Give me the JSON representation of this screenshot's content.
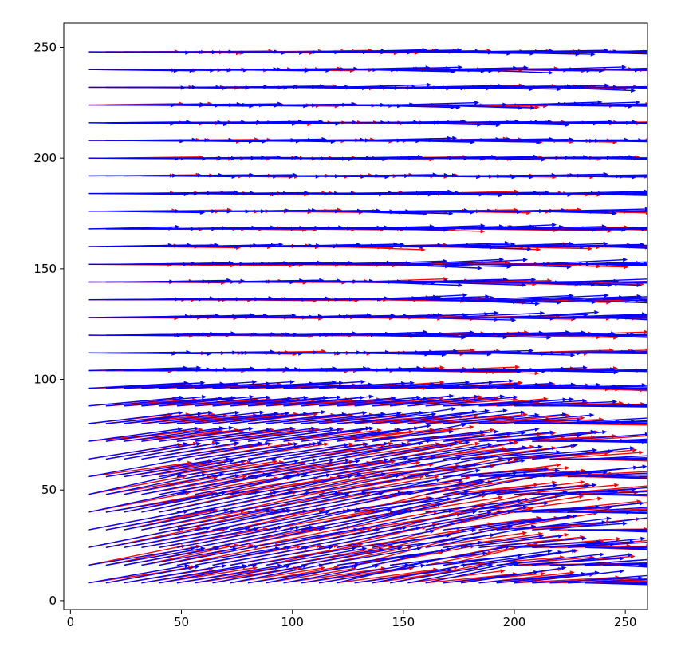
{
  "chart_data": {
    "type": "quiver",
    "title": "",
    "xlabel": "",
    "ylabel": "",
    "xlim": [
      -3,
      260
    ],
    "ylim": [
      -4,
      261
    ],
    "xticks": [
      0,
      50,
      100,
      150,
      200,
      250
    ],
    "yticks": [
      0,
      50,
      100,
      150,
      200,
      250
    ],
    "x_tick_labels": [
      "0",
      "50",
      "100",
      "150",
      "200",
      "250"
    ],
    "y_tick_labels": [
      "0",
      "50",
      "100",
      "150",
      "200",
      "250"
    ],
    "grid": false,
    "legend": "none",
    "arrow_spacing": 8,
    "series": [
      {
        "color": "#ff0000",
        "draw_order": 0,
        "seed": 7,
        "base": {
          "dx": 40,
          "dy": 0
        },
        "shear_start_x": 115,
        "rows": [
          {
            "y": 8,
            "mag": 44,
            "dy": 7,
            "shear": 4
          },
          {
            "y": 16,
            "mag": 46,
            "dy": 9,
            "shear": 7
          },
          {
            "y": 24,
            "mag": 46,
            "dy": 9,
            "shear": 6
          },
          {
            "y": 32,
            "mag": 46,
            "dy": 9,
            "shear": 6
          },
          {
            "y": 40,
            "mag": 46,
            "dy": 9,
            "shear": 5
          },
          {
            "y": 48,
            "mag": 46,
            "dy": 8,
            "shear": 5
          },
          {
            "y": 56,
            "mag": 44,
            "dy": 7,
            "shear": 5
          },
          {
            "y": 64,
            "mag": 44,
            "dy": 7,
            "shear": 4
          },
          {
            "y": 72,
            "mag": 42,
            "dy": 5,
            "shear": 4
          },
          {
            "y": 80,
            "mag": 42,
            "dy": 4,
            "shear": 3
          },
          {
            "y": 88,
            "mag": 42,
            "dy": 3,
            "shear": 3
          },
          {
            "y": 96,
            "mag": 42,
            "dy": 1.5,
            "shear": 3
          },
          {
            "y": 104,
            "mag": 42,
            "dy": 0,
            "shear": 3
          },
          {
            "y": 112,
            "mag": 42,
            "dy": 0,
            "shear": 2.5
          },
          {
            "y": 120,
            "mag": 42,
            "dy": 0,
            "shear": 2.5
          },
          {
            "y": 128,
            "mag": 42,
            "dy": 0,
            "shear": 3
          },
          {
            "y": 136,
            "mag": 42,
            "dy": 0,
            "shear": 3
          },
          {
            "y": 144,
            "mag": 42,
            "dy": 0,
            "shear": 3
          },
          {
            "y": 152,
            "mag": 42,
            "dy": 0,
            "shear": 2.5
          },
          {
            "y": 160,
            "mag": 42,
            "dy": 0,
            "shear": 2.5
          },
          {
            "y": 168,
            "mag": 42,
            "dy": 0,
            "shear": 2
          },
          {
            "y": 176,
            "mag": 42,
            "dy": 0,
            "shear": 1.5
          },
          {
            "y": 184,
            "mag": 42,
            "dy": 0,
            "shear": 1.5
          },
          {
            "y": 192,
            "mag": 42,
            "dy": 0,
            "shear": 1
          },
          {
            "y": 200,
            "mag": 42,
            "dy": 0,
            "shear": 1
          },
          {
            "y": 208,
            "mag": 42,
            "dy": 0,
            "shear": 1
          },
          {
            "y": 216,
            "mag": 42,
            "dy": 0,
            "shear": 1
          },
          {
            "y": 224,
            "mag": 42,
            "dy": 0,
            "shear": 1.5
          },
          {
            "y": 232,
            "mag": 42,
            "dy": 0,
            "shear": 1.5
          },
          {
            "y": 240,
            "mag": 42,
            "dy": 0,
            "shear": 1.5
          },
          {
            "y": 248,
            "mag": 42,
            "dy": 0,
            "shear": 1
          }
        ]
      },
      {
        "color": "#0000ff",
        "draw_order": 1,
        "seed": 13,
        "base": {
          "dx": 40,
          "dy": 0
        },
        "shear_start_x": 115,
        "rows": [
          {
            "y": 8,
            "mag": 46,
            "dy": 8,
            "shear": 4
          },
          {
            "y": 16,
            "mag": 46,
            "dy": 8,
            "shear": 5
          },
          {
            "y": 24,
            "mag": 46,
            "dy": 9,
            "shear": 7
          },
          {
            "y": 32,
            "mag": 46,
            "dy": 9,
            "shear": 7
          },
          {
            "y": 40,
            "mag": 46,
            "dy": 9,
            "shear": 7
          },
          {
            "y": 48,
            "mag": 46,
            "dy": 9,
            "shear": 6
          },
          {
            "y": 56,
            "mag": 46,
            "dy": 8,
            "shear": 6
          },
          {
            "y": 64,
            "mag": 44,
            "dy": 7,
            "shear": 5
          },
          {
            "y": 72,
            "mag": 44,
            "dy": 6,
            "shear": 4
          },
          {
            "y": 80,
            "mag": 44,
            "dy": 5,
            "shear": 4
          },
          {
            "y": 88,
            "mag": 44,
            "dy": 4,
            "shear": 3
          },
          {
            "y": 96,
            "mag": 44,
            "dy": 2.5,
            "shear": 3
          },
          {
            "y": 104,
            "mag": 42,
            "dy": 1,
            "shear": 3
          },
          {
            "y": 112,
            "mag": 42,
            "dy": 0,
            "shear": 3
          },
          {
            "y": 120,
            "mag": 42,
            "dy": 0.5,
            "shear": 3
          },
          {
            "y": 128,
            "mag": 42,
            "dy": 0.5,
            "shear": 4
          },
          {
            "y": 136,
            "mag": 42,
            "dy": 0.5,
            "shear": 4
          },
          {
            "y": 144,
            "mag": 42,
            "dy": 0.5,
            "shear": 4
          },
          {
            "y": 152,
            "mag": 42,
            "dy": 0.5,
            "shear": 4
          },
          {
            "y": 160,
            "mag": 42,
            "dy": 0.5,
            "shear": 3
          },
          {
            "y": 168,
            "mag": 42,
            "dy": 0.5,
            "shear": 3
          },
          {
            "y": 176,
            "mag": 42,
            "dy": 0,
            "shear": 2
          },
          {
            "y": 184,
            "mag": 42,
            "dy": 0,
            "shear": 2
          },
          {
            "y": 192,
            "mag": 42,
            "dy": 0,
            "shear": 1.5
          },
          {
            "y": 200,
            "mag": 42,
            "dy": 0,
            "shear": 1.5
          },
          {
            "y": 208,
            "mag": 42,
            "dy": 0,
            "shear": 1.5
          },
          {
            "y": 216,
            "mag": 42,
            "dy": 0,
            "shear": 2
          },
          {
            "y": 224,
            "mag": 42,
            "dy": 0,
            "shear": 2.5
          },
          {
            "y": 232,
            "mag": 42,
            "dy": 0,
            "shear": 3
          },
          {
            "y": 240,
            "mag": 42,
            "dy": 0,
            "shear": 3
          },
          {
            "y": 248,
            "mag": 42,
            "dy": 0,
            "shear": 2
          }
        ]
      }
    ]
  }
}
